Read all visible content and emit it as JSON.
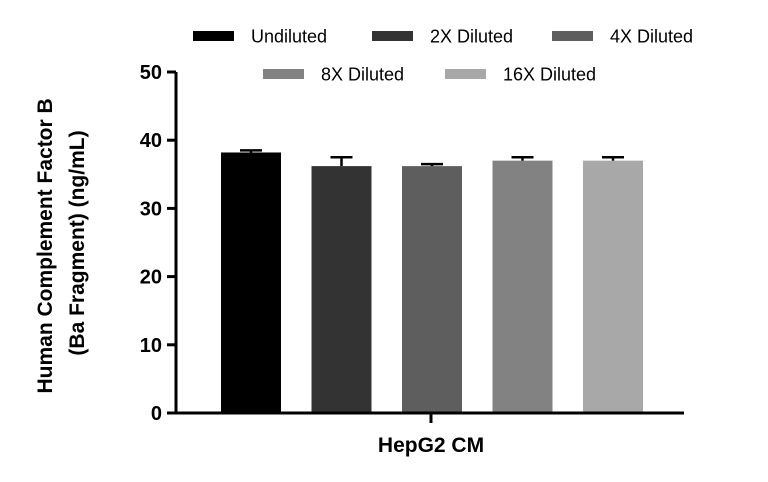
{
  "chart_data": {
    "type": "bar",
    "title": "",
    "xlabel": "HepG2 CM",
    "ylabel_line1": "Human Complement Factor B",
    "ylabel_line2": "(Ba Fragment) (ng/mL)",
    "ylim": [
      0,
      50
    ],
    "yticks": [
      "0",
      "10",
      "20",
      "30",
      "40",
      "50"
    ],
    "grid": false,
    "legend_position": "top",
    "series": [
      {
        "name": "Undiluted",
        "value": 38.2,
        "error": 0.3,
        "color": "#000000"
      },
      {
        "name": "2X Diluted",
        "value": 36.2,
        "error": 1.3,
        "color": "#333333"
      },
      {
        "name": "4X Diluted",
        "value": 36.2,
        "error": 0.3,
        "color": "#5e5e5e"
      },
      {
        "name": "8X Diluted",
        "value": 37.0,
        "error": 0.5,
        "color": "#828282"
      },
      {
        "name": "16X Diluted",
        "value": 37.0,
        "error": 0.5,
        "color": "#a8a8a8"
      }
    ]
  }
}
